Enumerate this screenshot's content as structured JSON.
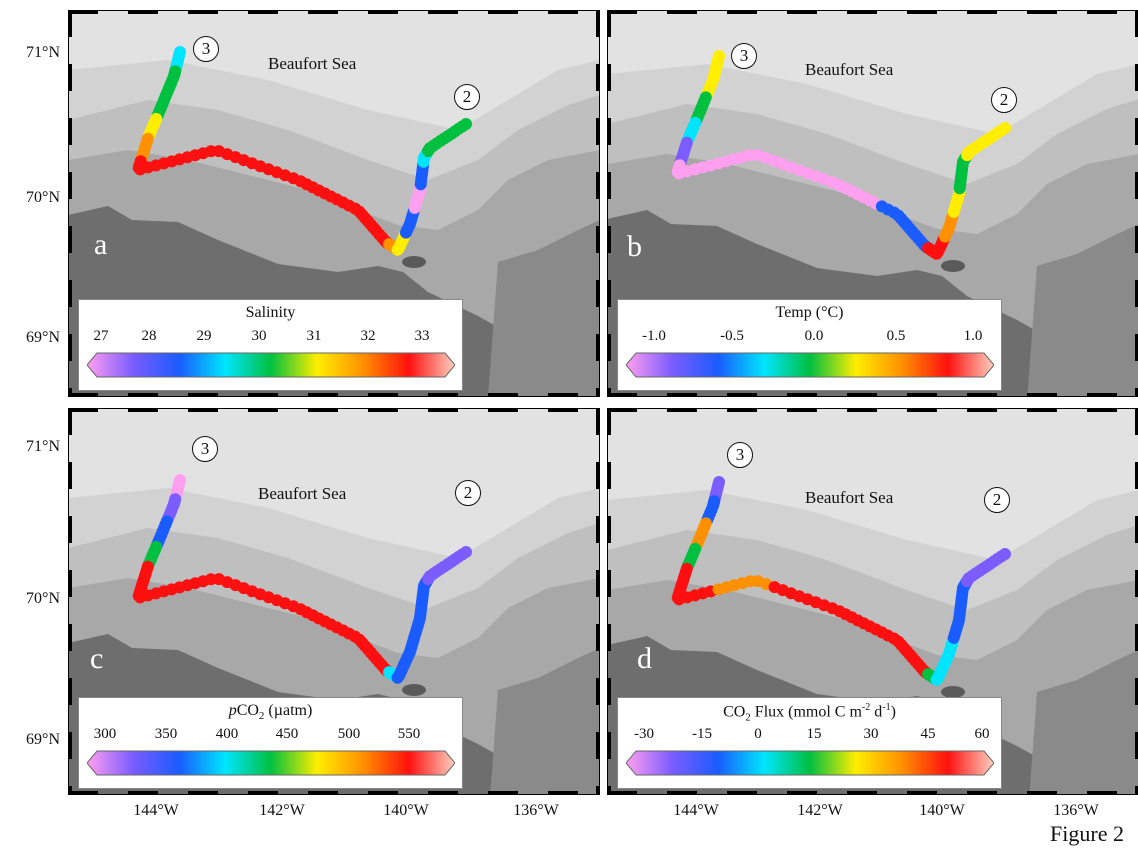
{
  "figure_label": "Figure 2",
  "latitude_labels": [
    "71°N",
    "70°N",
    "69°N"
  ],
  "longitude_labels": [
    "144°W",
    "142°W",
    "140°W",
    "138°W",
    "136°W"
  ],
  "sea_name": "Beaufort Sea",
  "stations": [
    "3",
    "2"
  ],
  "colors": {
    "sea_light": "#e2e2e2",
    "land": "#6e6e6e",
    "track_spectrum": [
      "#ff9ff0",
      "#7a5cff",
      "#1a5cff",
      "#00e5ff",
      "#00c040",
      "#ffee00",
      "#ff9000",
      "#ff1010",
      "#ffd0c0"
    ]
  },
  "panels": [
    {
      "letter": "a",
      "colorbar": {
        "title": "Salinity",
        "ticks": [
          "27",
          "28",
          "29",
          "30",
          "31",
          "32",
          "33"
        ]
      }
    },
    {
      "letter": "b",
      "colorbar": {
        "title": "Temp (°C)",
        "ticks": [
          "-1.0",
          "-0.5",
          "0.0",
          "0.5",
          "1.0"
        ]
      }
    },
    {
      "letter": "c",
      "colorbar": {
        "title_italic": "p",
        "title_main": "CO",
        "title_sub": "2",
        "title_rest": " (µatm)",
        "ticks": [
          "300",
          "350",
          "400",
          "450",
          "500",
          "550"
        ]
      }
    },
    {
      "letter": "d",
      "colorbar": {
        "title_main": "CO",
        "title_sub": "2",
        "title_mid": " Flux (mmol C m",
        "title_sup1": "-2",
        "title_mid2": " d",
        "title_sup2": "-1",
        "title_end": ")",
        "ticks": [
          "-30",
          "-15",
          "0",
          "15",
          "30",
          "45",
          "60"
        ]
      }
    }
  ]
}
